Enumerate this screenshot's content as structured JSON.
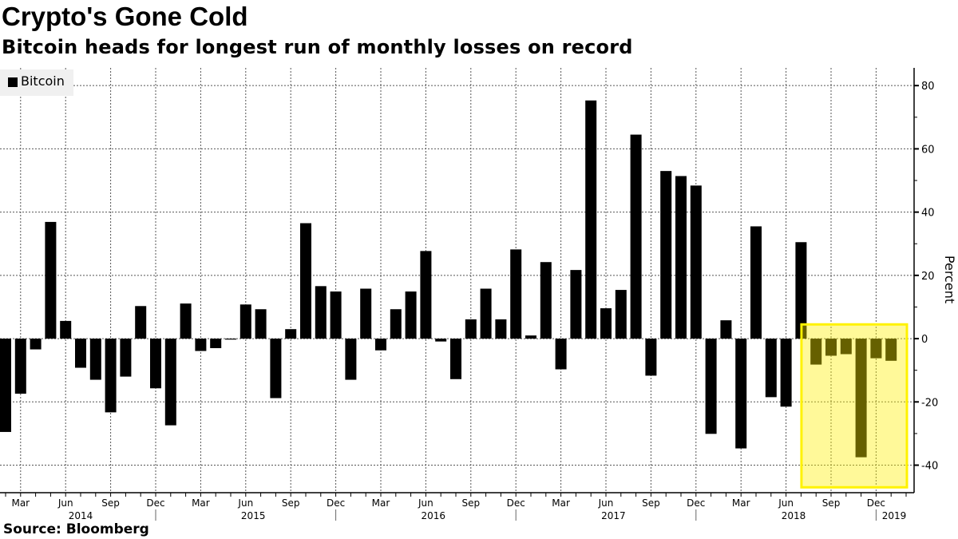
{
  "header": {
    "title": "Crypto's Gone Cold",
    "subtitle": "Bitcoin heads for longest run of monthly losses on record"
  },
  "footer": {
    "source": "Source: Bloomberg"
  },
  "chart_data": {
    "type": "bar",
    "title": "Crypto's Gone Cold",
    "subtitle": "Bitcoin heads for longest run of monthly losses on record",
    "xlabel": "",
    "ylabel": "Percent",
    "ylim": [
      -48.7,
      85.6
    ],
    "y_ticks": [
      -40,
      -20,
      0,
      20,
      40,
      60,
      80
    ],
    "grid": true,
    "legend": {
      "placement": "top-left",
      "entries": [
        "Bitcoin"
      ]
    },
    "colors": {
      "bar": "#000000",
      "highlight_fill": "#fff799",
      "highlight_border": "#fff200",
      "legend_bg": "#f0f0f0"
    },
    "x_tick_labels": [
      {
        "month": "2014-03",
        "label": "Mar"
      },
      {
        "month": "2014-06",
        "label": "Jun"
      },
      {
        "month": "2014-09",
        "label": "Sep"
      },
      {
        "month": "2014-12",
        "label": "Dec"
      },
      {
        "month": "2015-03",
        "label": "Mar"
      },
      {
        "month": "2015-06",
        "label": "Jun"
      },
      {
        "month": "2015-09",
        "label": "Sep"
      },
      {
        "month": "2015-12",
        "label": "Dec"
      },
      {
        "month": "2016-03",
        "label": "Mar"
      },
      {
        "month": "2016-06",
        "label": "Jun"
      },
      {
        "month": "2016-09",
        "label": "Sep"
      },
      {
        "month": "2016-12",
        "label": "Dec"
      },
      {
        "month": "2017-03",
        "label": "Mar"
      },
      {
        "month": "2017-06",
        "label": "Jun"
      },
      {
        "month": "2017-09",
        "label": "Sep"
      },
      {
        "month": "2017-12",
        "label": "Dec"
      },
      {
        "month": "2018-03",
        "label": "Mar"
      },
      {
        "month": "2018-06",
        "label": "Jun"
      },
      {
        "month": "2018-09",
        "label": "Sep"
      },
      {
        "month": "2018-12",
        "label": "Dec"
      }
    ],
    "year_labels": [
      "2014",
      "2015",
      "2016",
      "2017",
      "2018",
      "2019"
    ],
    "highlight": {
      "x_start": "2018-07",
      "x_end": "2019-02",
      "y_range": [
        -47,
        4.5
      ]
    },
    "series": [
      {
        "name": "Bitcoin",
        "x": [
          "2014-02",
          "2014-03",
          "2014-04",
          "2014-05",
          "2014-06",
          "2014-07",
          "2014-08",
          "2014-09",
          "2014-10",
          "2014-11",
          "2014-12",
          "2015-01",
          "2015-02",
          "2015-03",
          "2015-04",
          "2015-05",
          "2015-06",
          "2015-07",
          "2015-08",
          "2015-09",
          "2015-10",
          "2015-11",
          "2015-12",
          "2016-01",
          "2016-02",
          "2016-03",
          "2016-04",
          "2016-05",
          "2016-06",
          "2016-07",
          "2016-08",
          "2016-09",
          "2016-10",
          "2016-11",
          "2016-12",
          "2017-01",
          "2017-02",
          "2017-03",
          "2017-04",
          "2017-05",
          "2017-06",
          "2017-07",
          "2017-08",
          "2017-09",
          "2017-10",
          "2017-11",
          "2017-12",
          "2018-01",
          "2018-02",
          "2018-03",
          "2018-04",
          "2018-05",
          "2018-06",
          "2018-07",
          "2018-08",
          "2018-09",
          "2018-10",
          "2018-11",
          "2018-12",
          "2019-01"
        ],
        "values": [
          -29.5,
          -17.4,
          -3.4,
          36.9,
          5.6,
          -9.2,
          -13.0,
          -23.3,
          -12.0,
          10.3,
          -15.7,
          -27.4,
          11.1,
          -3.9,
          -3.0,
          -0.3,
          10.8,
          9.3,
          -18.8,
          3.0,
          36.5,
          16.6,
          14.9,
          -13.0,
          15.8,
          -3.7,
          9.3,
          14.9,
          27.7,
          -0.9,
          -12.8,
          6.1,
          15.8,
          6.1,
          28.2,
          1.0,
          24.2,
          -9.7,
          21.7,
          75.3,
          9.6,
          15.4,
          64.5,
          -11.7,
          53.0,
          51.4,
          48.4,
          -30.1,
          5.8,
          -34.7,
          35.5,
          -18.5,
          -21.5,
          30.5,
          -8.2,
          -5.4,
          -4.9,
          -37.5,
          -6.2,
          -7.0
        ]
      }
    ]
  }
}
